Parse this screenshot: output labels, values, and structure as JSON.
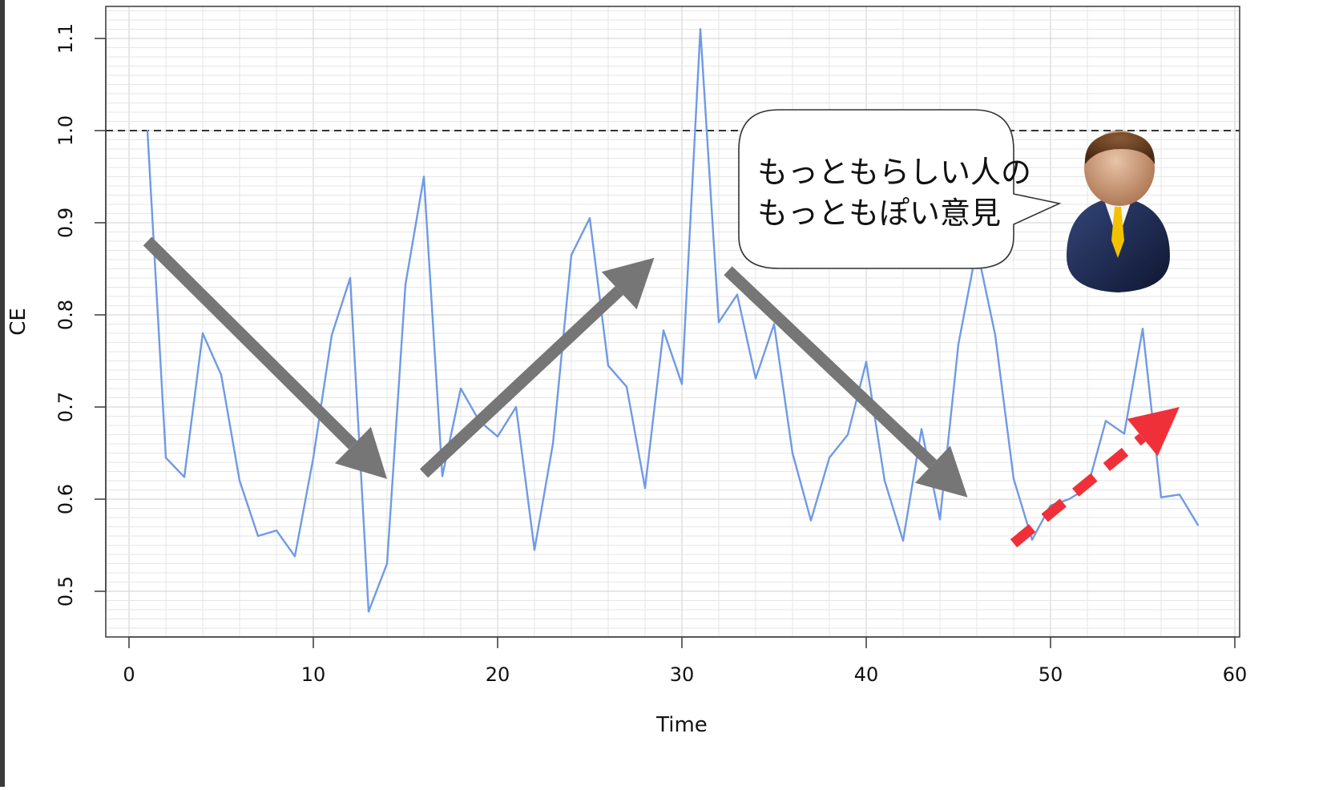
{
  "chart_data": {
    "type": "line",
    "xlabel": "Time",
    "ylabel": "CE",
    "xlim": [
      0,
      60
    ],
    "ylim": [
      0.46,
      1.14
    ],
    "x_ticks": [
      "0",
      "10",
      "20",
      "30",
      "40",
      "50",
      "60"
    ],
    "y_ticks": [
      "0.5",
      "0.6",
      "0.7",
      "0.8",
      "0.9",
      "1.0",
      "1.1"
    ],
    "grid": true,
    "reference_line": {
      "y": 1.0,
      "style": "dashed",
      "color": "#333333"
    },
    "line_color": "#6f9ae6",
    "series": [
      {
        "x": [
          1,
          2,
          3,
          4,
          5,
          6,
          7,
          8,
          9,
          10,
          11,
          12,
          13,
          14,
          15,
          16,
          17,
          18,
          19,
          20,
          21,
          22,
          23,
          24,
          25,
          26,
          27,
          28,
          29,
          30,
          31,
          32,
          33,
          34,
          35,
          36,
          37,
          38,
          39,
          40,
          41,
          42,
          43,
          44,
          45,
          46,
          47,
          48,
          49,
          50,
          51,
          52,
          53,
          54,
          55,
          56,
          57,
          58
        ],
        "values": [
          1.0,
          0.645,
          0.624,
          0.78,
          0.735,
          0.62,
          0.56,
          0.566,
          0.538,
          0.645,
          0.778,
          0.84,
          0.478,
          0.53,
          0.833,
          0.95,
          0.625,
          0.72,
          0.685,
          0.668,
          0.7,
          0.545,
          0.66,
          0.865,
          0.905,
          0.745,
          0.722,
          0.612,
          0.783,
          0.725,
          1.11,
          0.792,
          0.822,
          0.731,
          0.79,
          0.65,
          0.577,
          0.645,
          0.67,
          0.749,
          0.62,
          0.555,
          0.676,
          0.578,
          0.768,
          0.873,
          0.778,
          0.622,
          0.556,
          0.593,
          0.6,
          0.612,
          0.685,
          0.671,
          0.785,
          0.602,
          0.605,
          0.572
        ]
      }
    ],
    "annotations": {
      "gray_arrows": [
        {
          "from": [
            1,
            0.88
          ],
          "to": [
            14,
            0.622
          ],
          "direction": "down"
        },
        {
          "from": [
            16,
            0.628
          ],
          "to": [
            28.5,
            0.862
          ],
          "direction": "up"
        },
        {
          "from": [
            32.5,
            0.848
          ],
          "to": [
            45.5,
            0.602
          ],
          "direction": "down"
        }
      ],
      "red_dashed_arrow": {
        "from": [
          48,
          0.552
        ],
        "to": [
          57,
          0.7
        ],
        "color": "#f03038"
      }
    }
  },
  "callout": {
    "line1": "もっともらしい人の",
    "line2": "もっともぽい意見"
  },
  "colors": {
    "plot_bg": "#ffffff",
    "grid_minor": "#e6e6e6",
    "grid_major": "#cfcfcf",
    "axis": "#444444",
    "gray_arrow": "#767676",
    "red_arrow": "#f03038",
    "suit": "#1c2a52",
    "tie": "#f2c200"
  },
  "icons": {
    "person": "businessman-avatar-icon"
  }
}
